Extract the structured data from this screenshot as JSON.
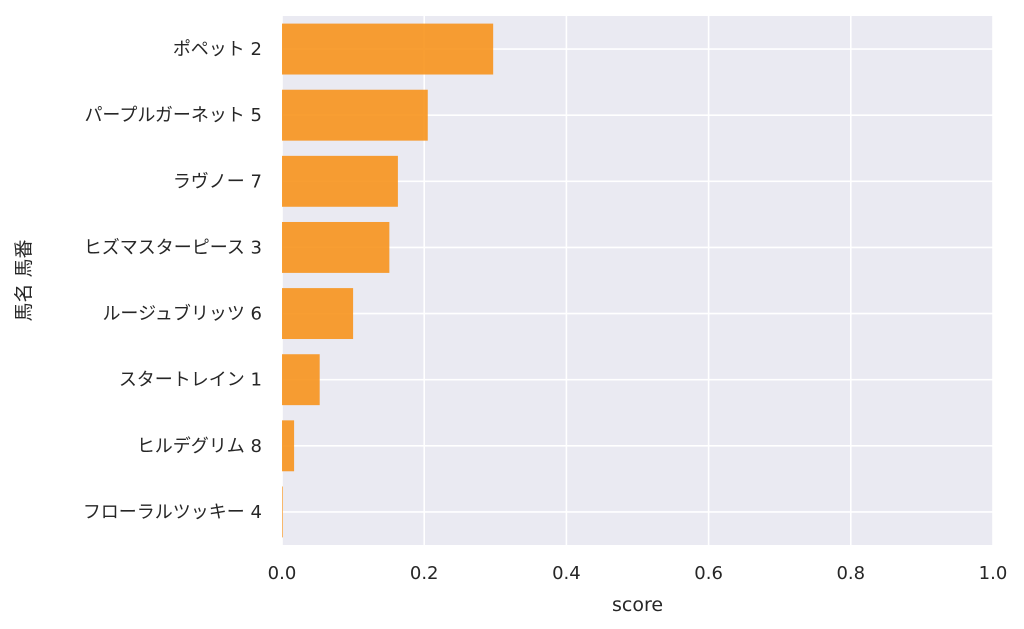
{
  "chart_data": {
    "type": "bar",
    "orientation": "horizontal",
    "categories": [
      "ポペット 2",
      "パープルガーネット 5",
      "ラヴノー 7",
      "ヒズマスターピース 3",
      "ルージュブリッツ 6",
      "スタートレイン 1",
      "ヒルデグリム 8",
      "フローラルツッキー 4"
    ],
    "values": [
      0.297,
      0.205,
      0.163,
      0.151,
      0.1,
      0.053,
      0.017,
      0.001
    ],
    "xlabel": "score",
    "ylabel": "馬名 馬番",
    "xlim": [
      0,
      1
    ],
    "xticks": [
      0.0,
      0.2,
      0.4,
      0.6,
      0.8,
      1.0
    ],
    "xtick_labels": [
      "0.0",
      "0.2",
      "0.4",
      "0.6",
      "0.8",
      "1.0"
    ],
    "grid": true,
    "bar_color": "#f7941d",
    "background_color": "#eaeaf2"
  }
}
